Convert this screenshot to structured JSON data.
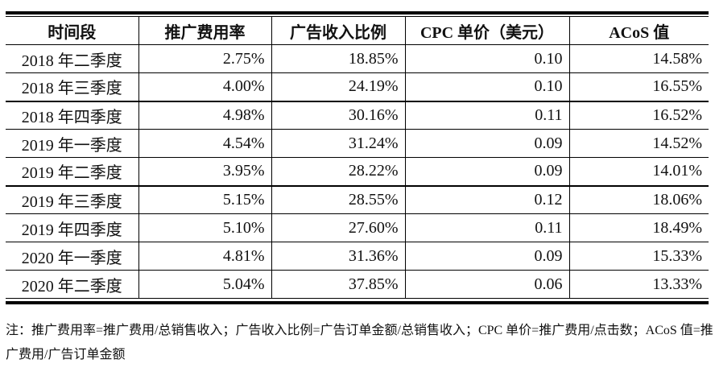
{
  "table": {
    "headers": [
      "时间段",
      "推广费用率",
      "广告收入比例",
      "CPC 单价（美元）",
      "ACoS 值"
    ],
    "rows": [
      [
        "2018 年二季度",
        "2.75%",
        "18.85%",
        "0.10",
        "14.58%"
      ],
      [
        "2018 年三季度",
        "4.00%",
        "24.19%",
        "0.10",
        "16.55%"
      ],
      [
        "2018 年四季度",
        "4.98%",
        "30.16%",
        "0.11",
        "16.52%"
      ],
      [
        "2019 年一季度",
        "4.54%",
        "31.24%",
        "0.09",
        "14.52%"
      ],
      [
        "2019 年二季度",
        "3.95%",
        "28.22%",
        "0.09",
        "14.01%"
      ],
      [
        "2019 年三季度",
        "5.15%",
        "28.55%",
        "0.12",
        "18.06%"
      ],
      [
        "2019 年四季度",
        "5.10%",
        "27.60%",
        "0.11",
        "18.49%"
      ],
      [
        "2020 年一季度",
        "4.81%",
        "31.36%",
        "0.09",
        "15.33%"
      ],
      [
        "2020 年二季度",
        "5.04%",
        "37.85%",
        "0.06",
        "13.33%"
      ]
    ]
  },
  "note": "注：推广费用率=推广费用/总销售收入；广告收入比例=广告订单金额/总销售收入；CPC 单价=推广费用/点击数；ACoS 值=推广费用/广告订单金额"
}
